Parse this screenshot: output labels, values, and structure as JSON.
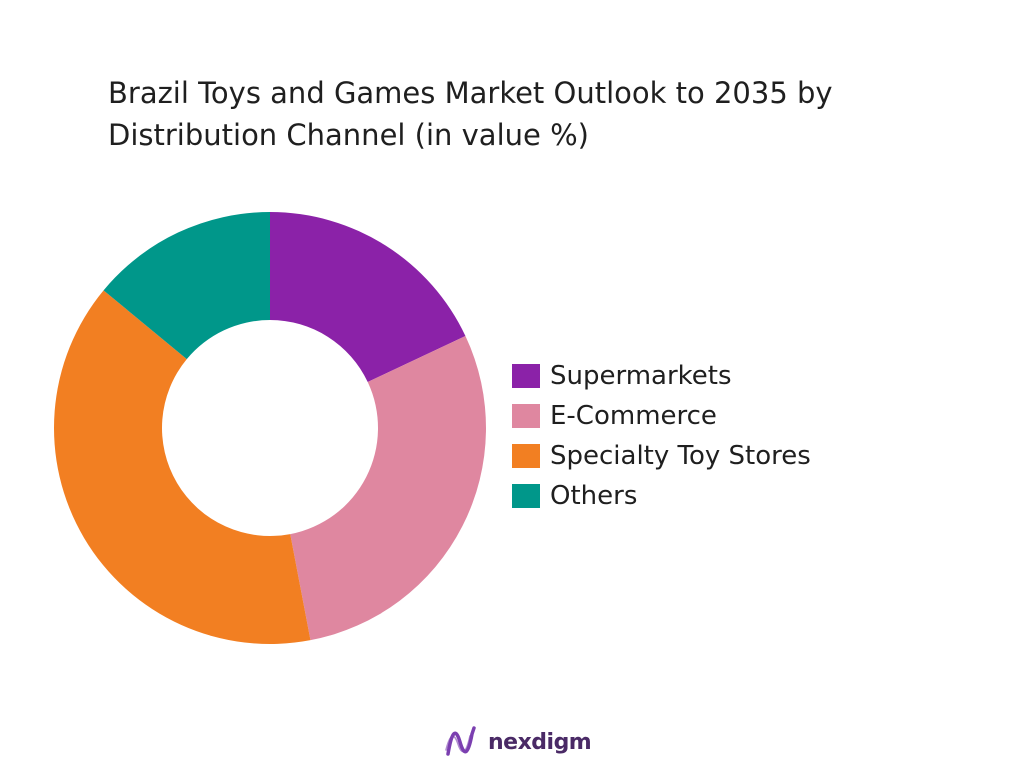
{
  "chart_data": {
    "type": "pie",
    "title_lines": [
      "Brazil Toys and Games Market Outlook to 2035 by",
      "Distribution Channel (in value %)"
    ],
    "series": [
      {
        "name": "Supermarkets",
        "value": 18,
        "color": "#8B22A8"
      },
      {
        "name": "E-Commerce",
        "value": 29,
        "color": "#DF87A0"
      },
      {
        "name": "Specialty Toy Stores",
        "value": 39,
        "color": "#F27F22"
      },
      {
        "name": "Others",
        "value": 14,
        "color": "#00978A"
      }
    ],
    "donut": true,
    "legend_position": "right"
  },
  "brand": {
    "name": "nexdigm",
    "logo_color": "#7B3FB0"
  }
}
